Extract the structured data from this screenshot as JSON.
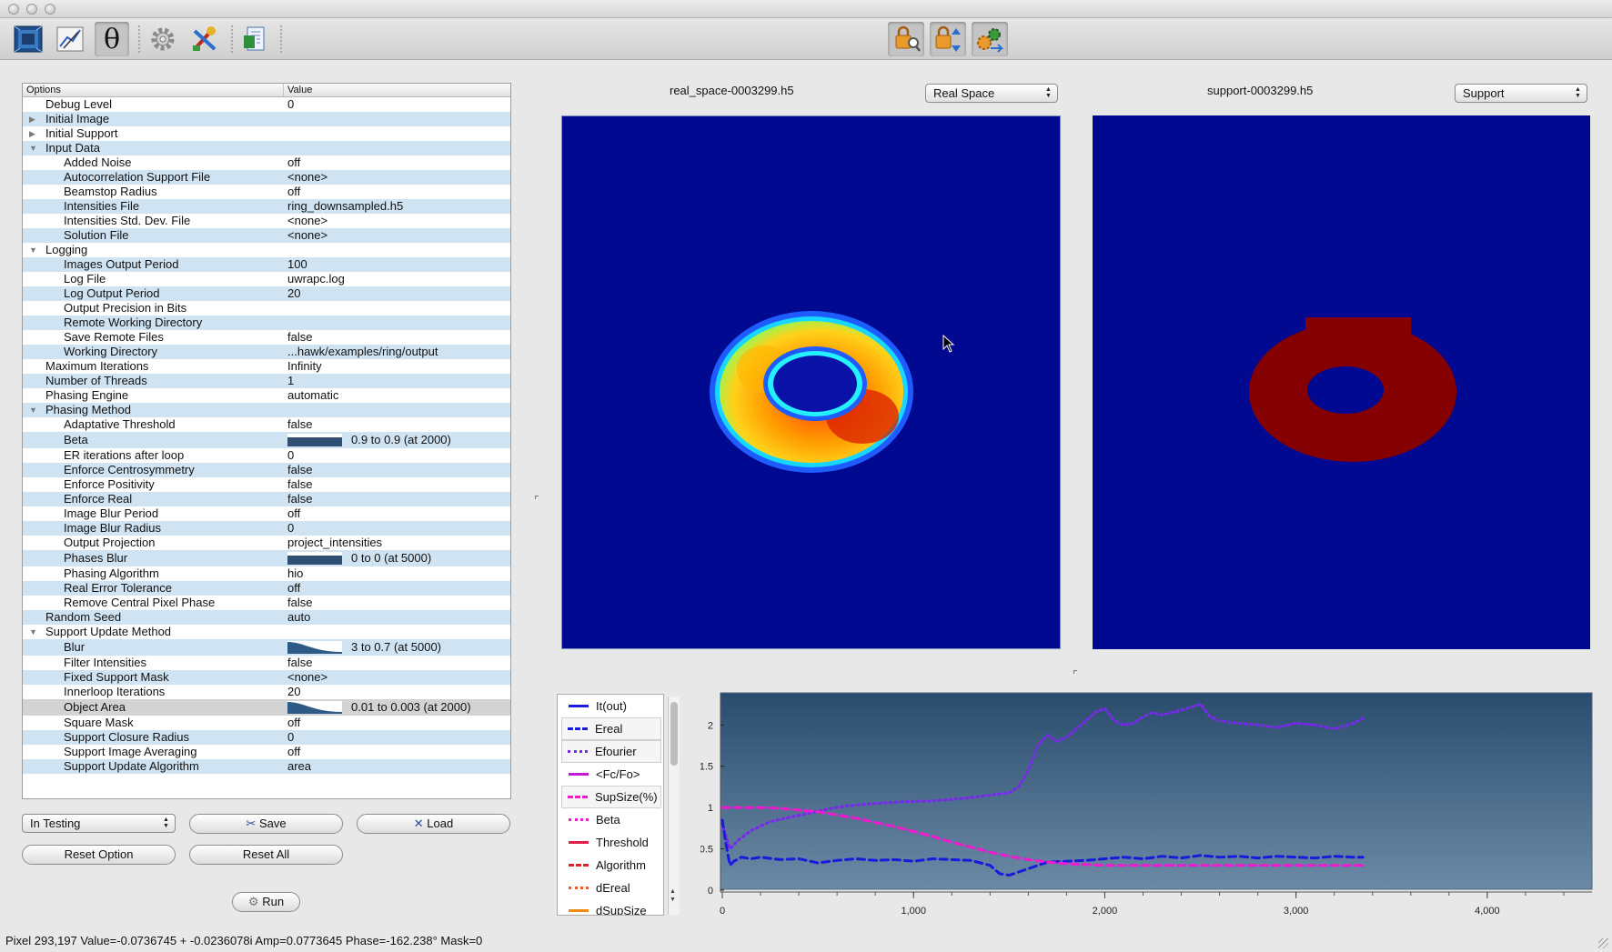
{
  "window": {
    "traffic_lights": [
      "close",
      "minimize",
      "zoom"
    ]
  },
  "toolbar": {
    "left_tools": [
      {
        "icon": "image-view-icon"
      },
      {
        "icon": "plot-edit-icon"
      },
      {
        "icon": "theta-icon",
        "glyph": "θ"
      },
      {
        "icon": "gear-icon"
      },
      {
        "icon": "paint-tools-icon"
      },
      {
        "icon": "document-export-icon"
      }
    ],
    "right_tools": [
      {
        "icon": "lock-search-icon"
      },
      {
        "icon": "lock-transfer-icon"
      },
      {
        "icon": "gears-arrow-icon"
      }
    ]
  },
  "options_table": {
    "header_options": "Options",
    "header_value": "Value",
    "rows": [
      {
        "label": "Debug Level",
        "value": "0",
        "level": 1
      },
      {
        "label": "Initial Image",
        "value": "",
        "level": 1,
        "expander": "collapsed"
      },
      {
        "label": "Initial Support",
        "value": "",
        "level": 1,
        "expander": "collapsed"
      },
      {
        "label": "Input Data",
        "value": "",
        "level": 1,
        "expander": "expanded"
      },
      {
        "label": "Added Noise",
        "value": "off",
        "level": 2
      },
      {
        "label": "Autocorrelation Support File",
        "value": "<none>",
        "level": 2
      },
      {
        "label": "Beamstop Radius",
        "value": "off",
        "level": 2
      },
      {
        "label": "Intensities File",
        "value": "ring_downsampled.h5",
        "level": 2
      },
      {
        "label": "Intensities Std. Dev. File",
        "value": "<none>",
        "level": 2
      },
      {
        "label": "Solution File",
        "value": "<none>",
        "level": 2
      },
      {
        "label": "Logging",
        "value": "",
        "level": 1,
        "expander": "expanded"
      },
      {
        "label": "Images Output Period",
        "value": "100",
        "level": 2
      },
      {
        "label": "Log File",
        "value": "uwrapc.log",
        "level": 2
      },
      {
        "label": "Log Output Period",
        "value": "20",
        "level": 2
      },
      {
        "label": "Output Precision in Bits",
        "value": "",
        "level": 2
      },
      {
        "label": "Remote Working Directory",
        "value": "",
        "level": 2
      },
      {
        "label": "Save Remote Files",
        "value": "false",
        "level": 2
      },
      {
        "label": "Working Directory",
        "value": "...hawk/examples/ring/output",
        "level": 2
      },
      {
        "label": "Maximum Iterations",
        "value": "Infinity",
        "level": 1
      },
      {
        "label": "Number of Threads",
        "value": "1",
        "level": 1
      },
      {
        "label": "Phasing Engine",
        "value": "automatic",
        "level": 1
      },
      {
        "label": "Phasing Method",
        "value": "",
        "level": 1,
        "expander": "expanded"
      },
      {
        "label": "Adaptative Threshold",
        "value": "false",
        "level": 2
      },
      {
        "label": "Beta",
        "value": "0.9 to 0.9 (at 2000)",
        "level": 2,
        "ramp": "flat"
      },
      {
        "label": "ER iterations after loop",
        "value": "0",
        "level": 2
      },
      {
        "label": "Enforce Centrosymmetry",
        "value": "false",
        "level": 2
      },
      {
        "label": "Enforce Positivity",
        "value": "false",
        "level": 2
      },
      {
        "label": "Enforce Real",
        "value": "false",
        "level": 2
      },
      {
        "label": "Image Blur Period",
        "value": "off",
        "level": 2
      },
      {
        "label": "Image Blur Radius",
        "value": "0",
        "level": 2
      },
      {
        "label": "Output Projection",
        "value": "project_intensities",
        "level": 2
      },
      {
        "label": "Phases Blur",
        "value": "0 to 0 (at 5000)",
        "level": 2,
        "ramp": "flat"
      },
      {
        "label": "Phasing Algorithm",
        "value": "hio",
        "level": 2
      },
      {
        "label": "Real Error Tolerance",
        "value": "off",
        "level": 2
      },
      {
        "label": "Remove Central Pixel Phase",
        "value": "false",
        "level": 2
      },
      {
        "label": "Random Seed",
        "value": "auto",
        "level": 1
      },
      {
        "label": "Support Update Method",
        "value": "",
        "level": 1,
        "expander": "expanded"
      },
      {
        "label": "Blur",
        "value": "3 to 0.7 (at 5000)",
        "level": 2,
        "ramp": "decay"
      },
      {
        "label": "Filter Intensities",
        "value": "false",
        "level": 2
      },
      {
        "label": "Fixed Support Mask",
        "value": "<none>",
        "level": 2
      },
      {
        "label": "Innerloop Iterations",
        "value": "20",
        "level": 2
      },
      {
        "label": "Object Area",
        "value": "0.01 to 0.003 (at 2000)",
        "level": 2,
        "ramp": "decay",
        "selected": true
      },
      {
        "label": "Square Mask",
        "value": "off",
        "level": 2
      },
      {
        "label": "Support Closure Radius",
        "value": "0",
        "level": 2
      },
      {
        "label": "Support Image Averaging",
        "value": "off",
        "level": 2
      },
      {
        "label": "Support Update Algorithm",
        "value": "area",
        "level": 2
      }
    ]
  },
  "controls": {
    "preset_select": "In Testing",
    "save_label": "Save",
    "load_label": "Load",
    "reset_option_label": "Reset Option",
    "reset_all_label": "Reset All",
    "run_label": "Run"
  },
  "views": {
    "left_title": "real_space-0003299.h5",
    "left_mode": "Real Space",
    "right_title": "support-0003299.h5",
    "right_mode": "Support"
  },
  "legend": [
    {
      "name": "It(out)",
      "color": "#1a1adc",
      "style": "solid"
    },
    {
      "name": "Ereal",
      "color": "#1a1adc",
      "style": "dashed",
      "boxed": true
    },
    {
      "name": "Efourier",
      "color": "#7a28f0",
      "style": "dotted",
      "boxed": true
    },
    {
      "name": "<Fc/Fo>",
      "color": "#c21ad0",
      "style": "solid"
    },
    {
      "name": "SupSize(%)",
      "color": "#f01ad0",
      "style": "dashed",
      "boxed": true
    },
    {
      "name": "Beta",
      "color": "#f01ad0",
      "style": "dotted"
    },
    {
      "name": "Threshold",
      "color": "#e0204a",
      "style": "solid"
    },
    {
      "name": "Algorithm",
      "color": "#e0202a",
      "style": "dashed"
    },
    {
      "name": "dEreal",
      "color": "#ef5a2a",
      "style": "dotted"
    },
    {
      "name": "dSupSize",
      "color": "#f08a10",
      "style": "solid"
    }
  ],
  "chart_data": {
    "type": "line",
    "xlim": [
      0,
      4500
    ],
    "ylim": [
      0,
      2.3
    ],
    "x_ticks": [
      "0",
      "1,000",
      "2,000",
      "3,000",
      "4,000"
    ],
    "x_tick_values": [
      0,
      1000,
      2000,
      3000,
      4000
    ],
    "y_ticks": [
      "0",
      "0.5",
      "1",
      "1.5",
      "2"
    ],
    "y_tick_values": [
      0,
      0.5,
      1,
      1.5,
      2
    ],
    "series": [
      {
        "name": "Efourier",
        "color": "#7a28f0",
        "style": "dotted",
        "x": [
          0,
          40,
          80,
          150,
          250,
          350,
          450,
          550,
          650,
          800,
          950,
          1100,
          1200,
          1300,
          1400,
          1500,
          1550,
          1600,
          1650,
          1700,
          1750,
          1800,
          1850,
          1900,
          1950,
          2000,
          2050,
          2100,
          2150,
          2200,
          2250,
          2300,
          2400,
          2500,
          2550,
          2600,
          2700,
          2800,
          2900,
          3000,
          3100,
          3200,
          3300,
          3350
        ],
        "y": [
          0.8,
          0.5,
          0.6,
          0.72,
          0.83,
          0.88,
          0.93,
          0.98,
          1.02,
          1.05,
          1.07,
          1.08,
          1.1,
          1.12,
          1.15,
          1.18,
          1.25,
          1.45,
          1.75,
          1.88,
          1.8,
          1.85,
          1.95,
          2.05,
          2.15,
          2.2,
          2.05,
          2.0,
          2.02,
          2.1,
          2.15,
          2.12,
          2.18,
          2.25,
          2.1,
          2.05,
          2.02,
          2.0,
          1.97,
          2.02,
          2.0,
          1.95,
          2.02,
          2.08
        ]
      },
      {
        "name": "Ereal",
        "color": "#1a1adc",
        "style": "dashed",
        "x": [
          0,
          20,
          40,
          60,
          100,
          150,
          200,
          300,
          400,
          500,
          600,
          700,
          800,
          900,
          1000,
          1100,
          1200,
          1300,
          1400,
          1450,
          1500,
          1550,
          1600,
          1650,
          1700,
          1800,
          1900,
          2000,
          2100,
          2200,
          2300,
          2400,
          2500,
          2600,
          2700,
          2800,
          2900,
          3000,
          3100,
          3200,
          3300,
          3350
        ],
        "y": [
          0.85,
          0.55,
          0.3,
          0.35,
          0.4,
          0.38,
          0.4,
          0.37,
          0.38,
          0.33,
          0.36,
          0.38,
          0.36,
          0.37,
          0.35,
          0.38,
          0.37,
          0.36,
          0.3,
          0.2,
          0.18,
          0.22,
          0.26,
          0.3,
          0.34,
          0.35,
          0.36,
          0.38,
          0.4,
          0.38,
          0.41,
          0.39,
          0.42,
          0.4,
          0.41,
          0.39,
          0.41,
          0.4,
          0.39,
          0.41,
          0.4,
          0.4
        ]
      },
      {
        "name": "SupSize(%)",
        "color": "#f01ad0",
        "style": "dashed",
        "x": [
          0,
          100,
          200,
          300,
          400,
          500,
          600,
          700,
          800,
          900,
          1000,
          1100,
          1200,
          1300,
          1400,
          1500,
          1600,
          1700,
          1800,
          1900,
          2000,
          2100,
          2500,
          3000,
          3350
        ],
        "y": [
          1.0,
          1.0,
          1.0,
          0.99,
          0.97,
          0.95,
          0.91,
          0.87,
          0.82,
          0.77,
          0.71,
          0.65,
          0.58,
          0.52,
          0.46,
          0.41,
          0.37,
          0.34,
          0.32,
          0.31,
          0.3,
          0.3,
          0.3,
          0.3,
          0.3
        ]
      }
    ]
  },
  "status_bar": "Pixel 293,197 Value=-0.0736745 + -0.0236078i Amp=0.0773645 Phase=-162.238° Mask=0"
}
